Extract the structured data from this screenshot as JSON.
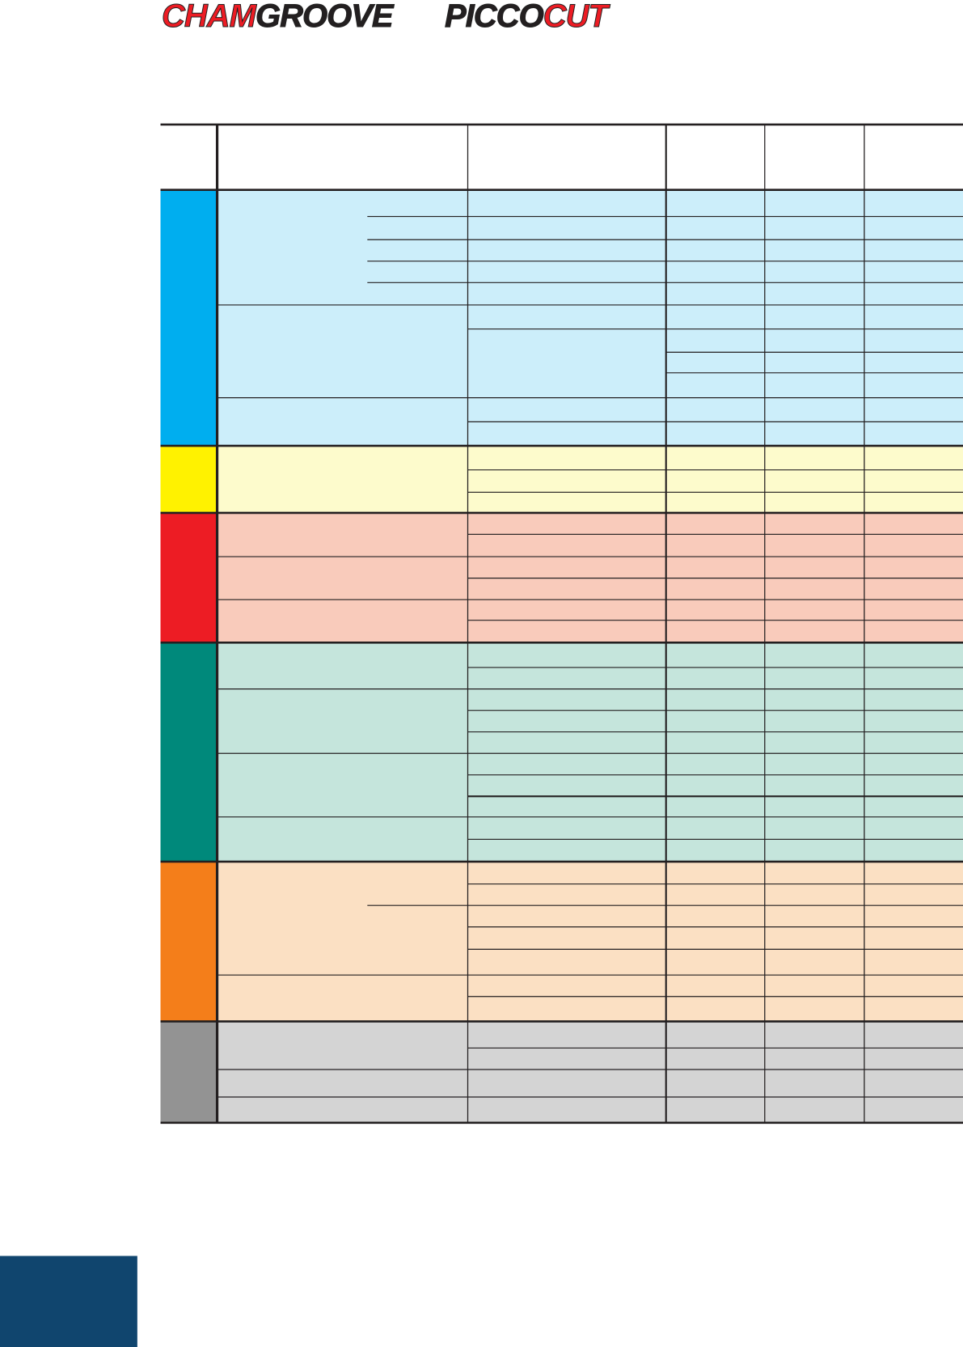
{
  "logos": [
    {
      "accent": "CHAM",
      "main": "GROOVE"
    },
    {
      "main": "PICCO",
      "accent": "CUT"
    }
  ],
  "colors": {
    "rule": "#231f20",
    "navy_block": "#10456e"
  },
  "table": {
    "sections": [
      {
        "name": "blue",
        "band": "#00aeef",
        "fill": "#cceefa"
      },
      {
        "name": "yellow",
        "band": "#fff200",
        "fill": "#fdfbcc"
      },
      {
        "name": "red",
        "band": "#ed1c24",
        "fill": "#f9cbbb"
      },
      {
        "name": "green",
        "band": "#00897b",
        "fill": "#c5e5dc"
      },
      {
        "name": "orange",
        "band": "#f47e1a",
        "fill": "#fbe0c3"
      },
      {
        "name": "gray",
        "band": "#939393",
        "fill": "#d4d4d4"
      }
    ]
  }
}
